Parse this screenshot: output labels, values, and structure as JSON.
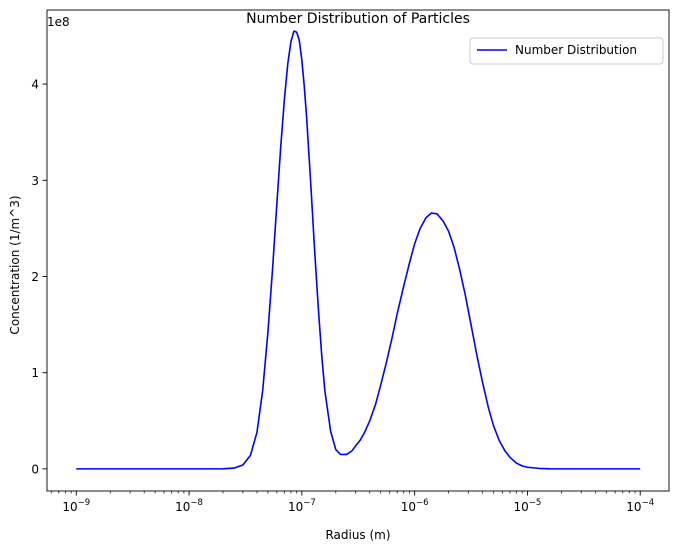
{
  "chart_data": {
    "type": "line",
    "title": "Number Distribution of Particles",
    "xlabel": "Radius (m)",
    "ylabel": "Concentration (1/m^3)",
    "y_offset_label": "1e8",
    "x_scale": "log",
    "xlim": [
      5.5e-10,
      0.00018
    ],
    "ylim": [
      -23000000.0,
      477000000.0
    ],
    "x_ticks": [
      {
        "value": 1e-09,
        "base": "10",
        "exp": "−9"
      },
      {
        "value": 1e-08,
        "base": "10",
        "exp": "−8"
      },
      {
        "value": 1e-07,
        "base": "10",
        "exp": "−7"
      },
      {
        "value": 1e-06,
        "base": "10",
        "exp": "−6"
      },
      {
        "value": 1e-05,
        "base": "10",
        "exp": "−5"
      },
      {
        "value": 0.0001,
        "base": "10",
        "exp": "−4"
      }
    ],
    "y_ticks": [
      {
        "value": 0,
        "label": "0"
      },
      {
        "value": 100000000,
        "label": "1"
      },
      {
        "value": 200000000,
        "label": "2"
      },
      {
        "value": 300000000,
        "label": "3"
      },
      {
        "value": 400000000,
        "label": "4"
      }
    ],
    "legend": {
      "position": "top-right"
    },
    "series": [
      {
        "name": "Number Distribution",
        "color": "#0000ff",
        "x": [
          1e-09,
          3e-09,
          1e-08,
          1.5e-08,
          2e-08,
          2.5e-08,
          3e-08,
          3.5e-08,
          4e-08,
          4.5e-08,
          5e-08,
          5.5e-08,
          6e-08,
          6.5e-08,
          7e-08,
          7.5e-08,
          8e-08,
          8.5e-08,
          9e-08,
          9.5e-08,
          1e-07,
          1.05e-07,
          1.1e-07,
          1.2e-07,
          1.3e-07,
          1.4e-07,
          1.5e-07,
          1.6e-07,
          1.8e-07,
          2e-07,
          2.2e-07,
          2.5e-07,
          2.8e-07,
          3e-07,
          3.3e-07,
          3.6e-07,
          4e-07,
          4.5e-07,
          5e-07,
          5.6e-07,
          6.3e-07,
          7e-07,
          8e-07,
          9e-07,
          1e-06,
          1.12e-06,
          1.26e-06,
          1.41e-06,
          1.58e-06,
          1.78e-06,
          2e-06,
          2.24e-06,
          2.51e-06,
          2.82e-06,
          3.16e-06,
          3.55e-06,
          4e-06,
          4.5e-06,
          5e-06,
          5.6e-06,
          6.3e-06,
          7e-06,
          8e-06,
          9e-06,
          1e-05,
          1.26e-05,
          1.58e-05,
          2e-05,
          3e-05,
          5e-05,
          0.0001
        ],
        "y": [
          0,
          0,
          0,
          0,
          100000,
          800000,
          4000000,
          14000000,
          38000000,
          82000000,
          142000000,
          208000000,
          275000000,
          335000000,
          384000000,
          421000000,
          444000000,
          455000000,
          454000000,
          445000000,
          425000000,
          398000000,
          367000000,
          296000000,
          226000000,
          167000000,
          118000000,
          81000000,
          39000000,
          20000000,
          15000000,
          15000000,
          19000000,
          24000000,
          30000000,
          38000000,
          50000000,
          67000000,
          87000000,
          110000000,
          136000000,
          161000000,
          190000000,
          214000000,
          234000000,
          250000000,
          261000000,
          266000000,
          265000000,
          258000000,
          247000000,
          230000000,
          207000000,
          180000000,
          150000000,
          119000000,
          90000000,
          64000000,
          45000000,
          30000000,
          19000000,
          12000000,
          6000000,
          3000000,
          1700000,
          500000,
          100000,
          0,
          0,
          0,
          0
        ]
      }
    ]
  }
}
